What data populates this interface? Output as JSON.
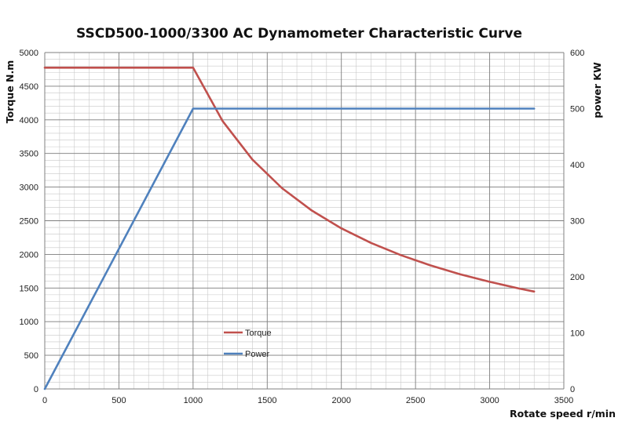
{
  "chart_data": {
    "type": "line",
    "title": "SSCD500-1000/3300 AC Dynamometer Characteristic Curve",
    "xlabel": "Rotate speed r/min",
    "ylabel_left": "Torque N.m",
    "ylabel_right": "power KW",
    "xlim": [
      0,
      3500
    ],
    "ylim_left": [
      0,
      5000
    ],
    "ylim_right": [
      0,
      600
    ],
    "x_ticks": [
      0,
      500,
      1000,
      1500,
      2000,
      2500,
      3000,
      3500
    ],
    "y_left_ticks": [
      0,
      500,
      1000,
      1500,
      2000,
      2500,
      3000,
      3500,
      4000,
      4500,
      5000
    ],
    "y_right_ticks": [
      0,
      100,
      200,
      300,
      400,
      500,
      600
    ],
    "grid": true,
    "legend_position": "center-left",
    "series": [
      {
        "name": "Torque",
        "axis": "left",
        "color": "#c0504d",
        "x": [
          0,
          1000,
          1200,
          1400,
          1600,
          1800,
          2000,
          2200,
          2400,
          2600,
          2800,
          3000,
          3200,
          3300
        ],
        "values": [
          4775,
          4775,
          3979,
          3410,
          2984,
          2653,
          2387,
          2170,
          1989,
          1837,
          1705,
          1592,
          1492,
          1447
        ]
      },
      {
        "name": "Power",
        "axis": "right",
        "color": "#4f81bd",
        "x": [
          0,
          1000,
          3300
        ],
        "values": [
          0,
          500,
          500
        ]
      }
    ]
  }
}
